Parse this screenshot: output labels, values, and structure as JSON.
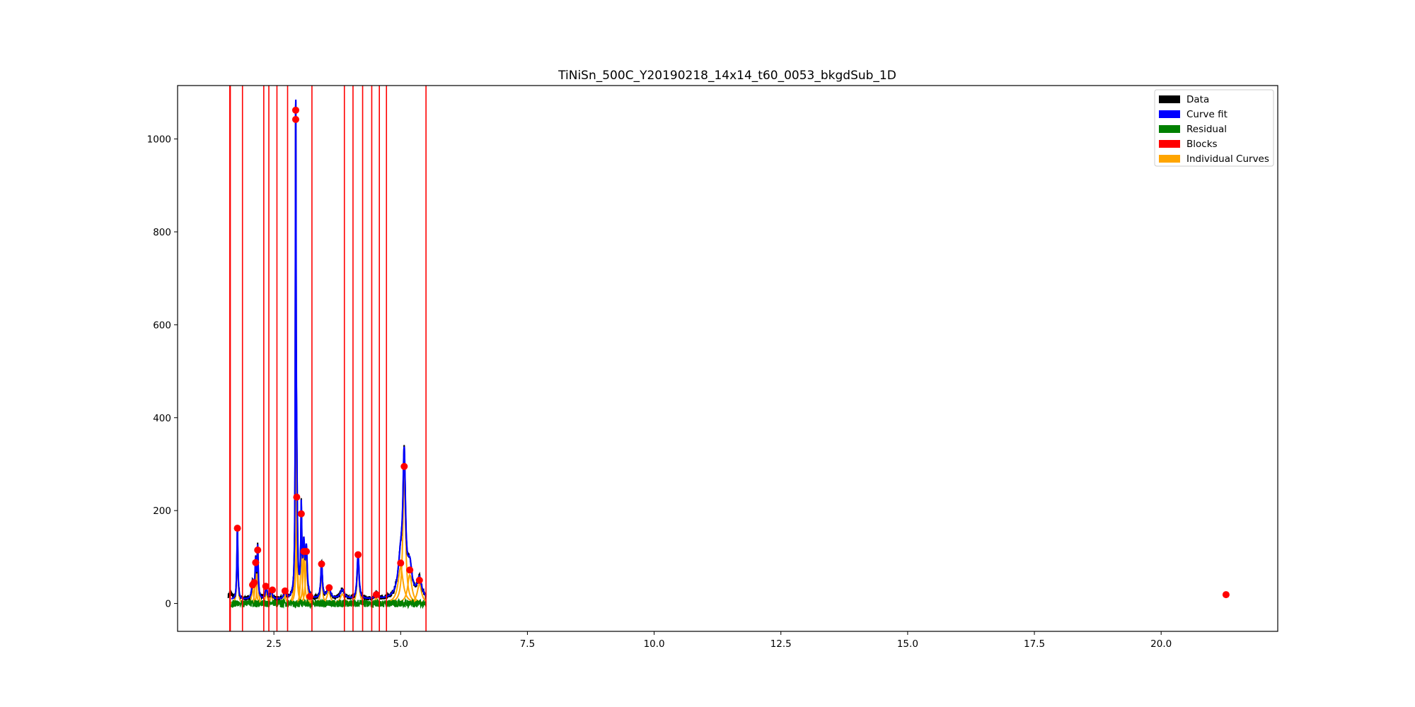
{
  "chart_data": {
    "type": "line",
    "title": "TiNiSn_500C_Y20190218_14x14_t60_0053_bkgdSub_1D",
    "xlabel": "",
    "ylabel": "",
    "xlim": [
      0.6,
      22.3
    ],
    "ylim": [
      -60,
      1115
    ],
    "x_ticks": [
      2.5,
      5.0,
      7.5,
      10.0,
      12.5,
      15.0,
      17.5,
      20.0
    ],
    "x_tick_labels": [
      "2.5",
      "5.0",
      "7.5",
      "10.0",
      "12.5",
      "15.0",
      "17.5",
      "20.0"
    ],
    "y_ticks": [
      0,
      200,
      400,
      600,
      800,
      1000
    ],
    "y_tick_labels": [
      "0",
      "200",
      "400",
      "600",
      "800",
      "1000"
    ],
    "grid": false,
    "legend_position": "top-right",
    "legend": [
      {
        "label": "Data",
        "color": "#000000"
      },
      {
        "label": "Curve fit",
        "color": "#0000ff"
      },
      {
        "label": "Residual",
        "color": "#008000"
      },
      {
        "label": "Blocks",
        "color": "#ff0000"
      },
      {
        "label": "Individual Curves",
        "color": "#ffa500"
      }
    ],
    "baseline": {
      "x": [
        1.6,
        5.5
      ],
      "y": 8
    },
    "peaks": [
      {
        "x": 1.78,
        "h": 158,
        "w": 0.012
      },
      {
        "x": 2.08,
        "h": 35,
        "w": 0.02
      },
      {
        "x": 2.14,
        "h": 80,
        "w": 0.015
      },
      {
        "x": 2.18,
        "h": 107,
        "w": 0.012
      },
      {
        "x": 2.35,
        "h": 28,
        "w": 0.02
      },
      {
        "x": 2.45,
        "h": 20,
        "w": 0.02
      },
      {
        "x": 2.72,
        "h": 18,
        "w": 0.02
      },
      {
        "x": 2.93,
        "h": 1040,
        "w": 0.008
      },
      {
        "x": 2.95,
        "h": 225,
        "w": 0.015
      },
      {
        "x": 3.04,
        "h": 185,
        "w": 0.012
      },
      {
        "x": 3.09,
        "h": 105,
        "w": 0.02
      },
      {
        "x": 3.14,
        "h": 100,
        "w": 0.02
      },
      {
        "x": 3.44,
        "h": 77,
        "w": 0.018
      },
      {
        "x": 3.58,
        "h": 26,
        "w": 0.04
      },
      {
        "x": 3.85,
        "h": 20,
        "w": 0.05
      },
      {
        "x": 4.16,
        "h": 97,
        "w": 0.022
      },
      {
        "x": 4.52,
        "h": 12,
        "w": 0.03
      },
      {
        "x": 5.0,
        "h": 78,
        "w": 0.06
      },
      {
        "x": 5.07,
        "h": 285,
        "w": 0.03
      },
      {
        "x": 5.18,
        "h": 62,
        "w": 0.05
      },
      {
        "x": 5.37,
        "h": 42,
        "w": 0.05
      }
    ],
    "peak_markers": [
      {
        "x": 1.78,
        "y": 162
      },
      {
        "x": 2.08,
        "y": 40
      },
      {
        "x": 2.11,
        "y": 45
      },
      {
        "x": 2.14,
        "y": 88
      },
      {
        "x": 2.18,
        "y": 115
      },
      {
        "x": 2.34,
        "y": 37
      },
      {
        "x": 2.47,
        "y": 29
      },
      {
        "x": 2.72,
        "y": 27
      },
      {
        "x": 2.93,
        "y": 1062
      },
      {
        "x": 2.93,
        "y": 1042
      },
      {
        "x": 2.95,
        "y": 229
      },
      {
        "x": 3.04,
        "y": 193
      },
      {
        "x": 3.09,
        "y": 112
      },
      {
        "x": 3.14,
        "y": 112
      },
      {
        "x": 3.21,
        "y": 15
      },
      {
        "x": 3.44,
        "y": 85
      },
      {
        "x": 3.59,
        "y": 34
      },
      {
        "x": 4.16,
        "y": 105
      },
      {
        "x": 4.52,
        "y": 19
      },
      {
        "x": 5.0,
        "y": 87
      },
      {
        "x": 5.07,
        "y": 295
      },
      {
        "x": 5.18,
        "y": 72
      },
      {
        "x": 5.37,
        "y": 50
      },
      {
        "x": 21.28,
        "y": 19
      }
    ],
    "blocks": [
      1.63,
      1.64,
      1.88,
      2.3,
      2.4,
      2.56,
      2.77,
      3.25,
      3.89,
      4.06,
      4.25,
      4.43,
      4.58,
      4.72,
      5.5
    ]
  }
}
